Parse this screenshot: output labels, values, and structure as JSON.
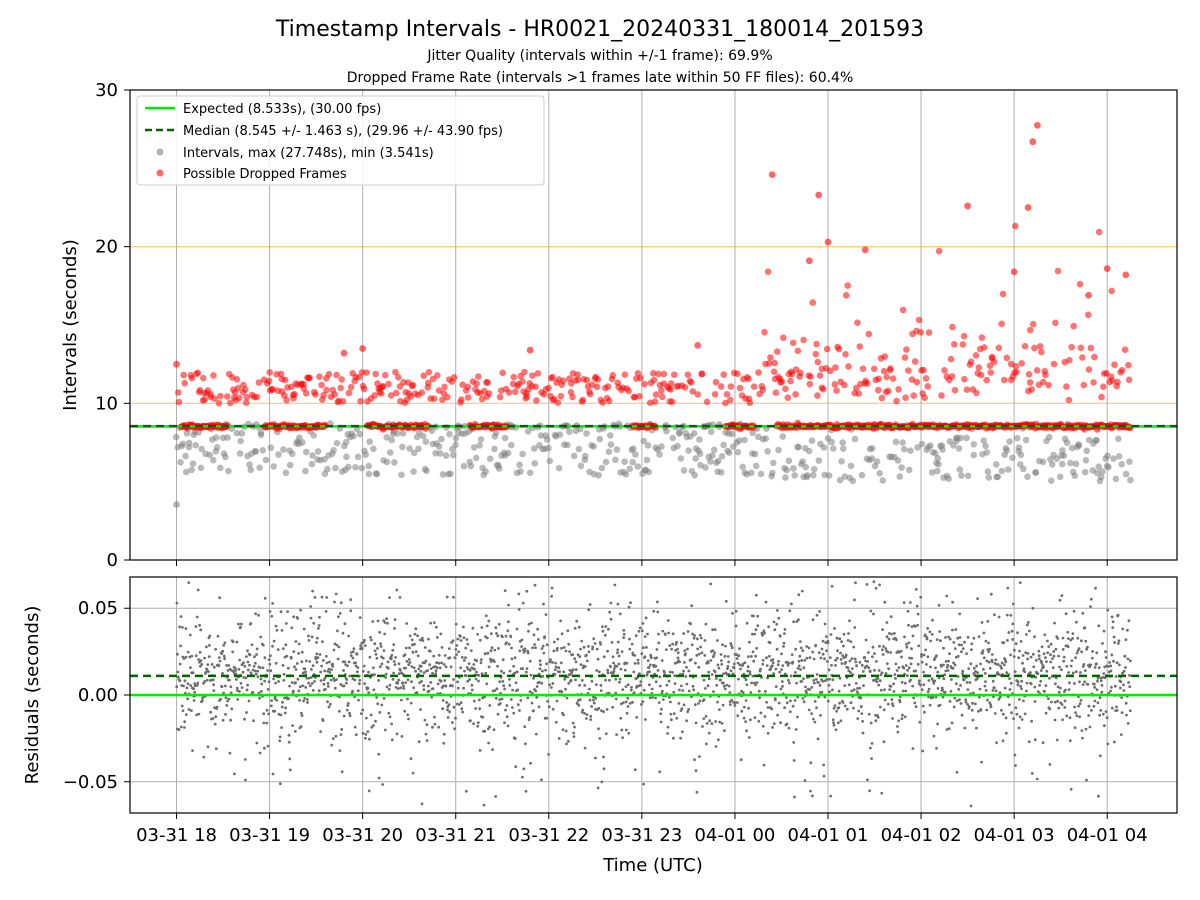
{
  "figure": {
    "title": "Timestamp Intervals - HR0021_20240331_180014_201593",
    "subtitle1": "Jitter Quality (intervals within +/-1 frame): 69.9%",
    "subtitle2": "Dropped Frame Rate (intervals >1 frames late within 50 FF files): 60.4%",
    "xlabel": "Time (UTC)"
  },
  "colors": {
    "expected": "#00ee00",
    "median": "#006400",
    "intervals": "#808080",
    "dropped": "#ff0000",
    "threshold": "#ffa500",
    "grid": "#b0b0b0"
  },
  "chart_data": [
    {
      "type": "scatter",
      "ylabel": "Intervals (seconds)",
      "ylim": [
        0,
        30
      ],
      "yticks": [
        0,
        10,
        20,
        30
      ],
      "xlim": [
        -0.5,
        10.75
      ],
      "x_ticks": [
        0,
        1,
        2,
        3,
        4,
        5,
        6,
        7,
        8,
        9,
        10
      ],
      "x_tick_labels": [
        "03-31 18",
        "03-31 19",
        "03-31 20",
        "03-31 21",
        "03-31 22",
        "03-31 23",
        "04-01 00",
        "04-01 01",
        "04-01 02",
        "04-01 03",
        "04-01 04"
      ],
      "x_end": 10.25,
      "expected": 8.533,
      "median": 8.545,
      "threshold_lines": [
        10,
        20
      ],
      "grid": true,
      "legend_position": "top-left",
      "legend": [
        {
          "kind": "line",
          "label": "Expected (8.533s), (30.00 fps)"
        },
        {
          "kind": "dash",
          "label": "Median (8.545 +/- 1.463 s), (29.96 +/- 43.90 fps)"
        },
        {
          "kind": "dot-gray",
          "label": "Intervals, max (27.748s), min (3.541s)"
        },
        {
          "kind": "dot-red",
          "label": "Possible Dropped Frames"
        }
      ],
      "outliers": [
        {
          "x": 0.0,
          "y": 3.541
        },
        {
          "x": 0.0,
          "y": 12.5
        },
        {
          "x": 1.8,
          "y": 13.2
        },
        {
          "x": 2.0,
          "y": 13.5
        },
        {
          "x": 3.8,
          "y": 13.4
        },
        {
          "x": 5.6,
          "y": 13.7
        },
        {
          "x": 6.4,
          "y": 24.6
        },
        {
          "x": 6.9,
          "y": 23.3
        },
        {
          "x": 6.8,
          "y": 19.1
        },
        {
          "x": 7.0,
          "y": 20.3
        },
        {
          "x": 7.4,
          "y": 19.8
        },
        {
          "x": 8.5,
          "y": 22.6
        },
        {
          "x": 9.0,
          "y": 18.4
        },
        {
          "x": 9.15,
          "y": 22.5
        },
        {
          "x": 9.2,
          "y": 26.7
        },
        {
          "x": 9.25,
          "y": 27.748
        },
        {
          "x": 9.8,
          "y": 16.9
        },
        {
          "x": 10.0,
          "y": 18.6
        },
        {
          "x": 10.2,
          "y": 18.2
        }
      ]
    },
    {
      "type": "scatter",
      "ylabel": "Residuals (seconds)",
      "ylim": [
        -0.068,
        0.068
      ],
      "yticks": [
        -0.05,
        0.0,
        0.05
      ],
      "ytick_labels": [
        "−0.05",
        "0.00",
        "0.05"
      ],
      "expected": 0.0,
      "median": 0.011,
      "grid": true
    }
  ]
}
